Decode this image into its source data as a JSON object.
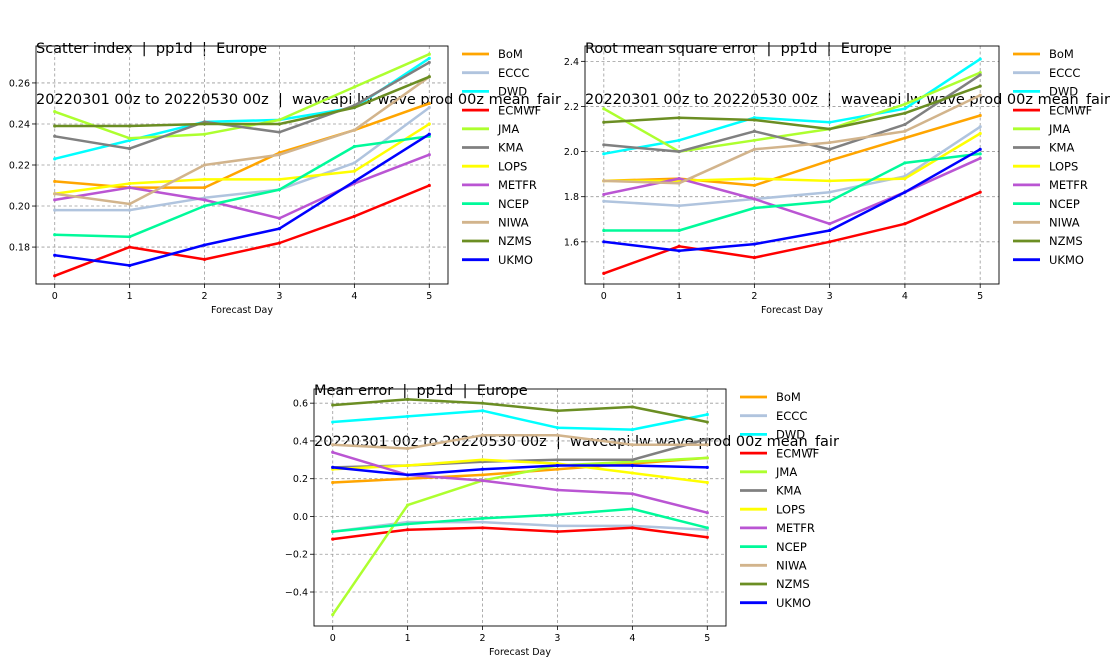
{
  "chart_data": [
    {
      "type": "line",
      "title": "Scatter index  |  pp1d  |  Europe",
      "subtitle": "20220301 00z to 20220530 00z  |  waveapi lw wave prod 00z mean_fair",
      "xlabel": "Forecast Day",
      "ylabel": "",
      "x": [
        0,
        1,
        2,
        3,
        4,
        5
      ],
      "xlim": [
        -0.25,
        5.25
      ],
      "ylim": [
        0.162,
        0.278
      ],
      "yticks": [
        0.18,
        0.2,
        0.22,
        0.24,
        0.26
      ],
      "ytick_labels": [
        "0.18",
        "0.20",
        "0.22",
        "0.24",
        "0.26"
      ],
      "grid": true,
      "legend_position": "outside-right",
      "series": [
        {
          "name": "BoM",
          "color": "#FFA500",
          "values": [
            0.212,
            0.209,
            0.209,
            0.226,
            0.237,
            0.25
          ]
        },
        {
          "name": "ECCC",
          "color": "#B0C4DE",
          "values": [
            0.198,
            0.198,
            0.204,
            0.208,
            0.221,
            0.248
          ]
        },
        {
          "name": "DWD",
          "color": "#00FFFF",
          "values": [
            0.223,
            0.232,
            0.241,
            0.242,
            0.248,
            0.272
          ]
        },
        {
          "name": "ECMWF",
          "color": "#FF0000",
          "values": [
            0.166,
            0.18,
            0.174,
            0.182,
            0.195,
            0.21
          ]
        },
        {
          "name": "JMA",
          "color": "#ADFF2F",
          "values": [
            0.246,
            0.233,
            0.235,
            0.242,
            0.258,
            0.274
          ]
        },
        {
          "name": "KMA",
          "color": "#808080",
          "values": [
            0.234,
            0.228,
            0.241,
            0.236,
            0.249,
            0.27
          ]
        },
        {
          "name": "LOPS",
          "color": "#FFFF00",
          "values": [
            0.206,
            0.211,
            0.213,
            0.213,
            0.217,
            0.24
          ]
        },
        {
          "name": "METFR",
          "color": "#BA55D3",
          "values": [
            0.203,
            0.209,
            0.203,
            0.194,
            0.211,
            0.225
          ]
        },
        {
          "name": "NCEP",
          "color": "#00FA9A",
          "values": [
            0.186,
            0.185,
            0.2,
            0.208,
            0.229,
            0.234
          ]
        },
        {
          "name": "NIWA",
          "color": "#D2B48C",
          "values": [
            0.206,
            0.201,
            0.22,
            0.225,
            0.237,
            0.263
          ]
        },
        {
          "name": "NZMS",
          "color": "#6B8E23",
          "values": [
            0.239,
            0.239,
            0.24,
            0.24,
            0.248,
            0.263
          ]
        },
        {
          "name": "UKMO",
          "color": "#0000FF",
          "values": [
            0.176,
            0.171,
            0.181,
            0.189,
            0.212,
            0.235
          ]
        }
      ]
    },
    {
      "type": "line",
      "title": "Root mean square error  |  pp1d  |  Europe",
      "subtitle": "20220301 00z to 20220530 00z  |  waveapi lw wave prod 00z mean_fair",
      "xlabel": "Forecast Day",
      "ylabel": "",
      "x": [
        0,
        1,
        2,
        3,
        4,
        5
      ],
      "xlim": [
        -0.25,
        5.25
      ],
      "ylim": [
        1.413,
        2.468
      ],
      "yticks": [
        1.6,
        1.8,
        2.0,
        2.2,
        2.4
      ],
      "ytick_labels": [
        "1.6",
        "1.8",
        "2.0",
        "2.2",
        "2.4"
      ],
      "grid": true,
      "legend_position": "outside-right",
      "series": [
        {
          "name": "BoM",
          "color": "#FFA500",
          "values": [
            1.87,
            1.88,
            1.85,
            1.96,
            2.06,
            2.16
          ]
        },
        {
          "name": "ECCC",
          "color": "#B0C4DE",
          "values": [
            1.78,
            1.76,
            1.79,
            1.82,
            1.89,
            2.11
          ]
        },
        {
          "name": "DWD",
          "color": "#00FFFF",
          "values": [
            1.99,
            2.05,
            2.15,
            2.13,
            2.19,
            2.41
          ]
        },
        {
          "name": "ECMWF",
          "color": "#FF0000",
          "values": [
            1.46,
            1.58,
            1.53,
            1.6,
            1.68,
            1.82
          ]
        },
        {
          "name": "JMA",
          "color": "#ADFF2F",
          "values": [
            2.19,
            2.0,
            2.05,
            2.1,
            2.21,
            2.35
          ]
        },
        {
          "name": "KMA",
          "color": "#808080",
          "values": [
            2.03,
            2.0,
            2.09,
            2.01,
            2.12,
            2.34
          ]
        },
        {
          "name": "LOPS",
          "color": "#FFFF00",
          "values": [
            1.87,
            1.87,
            1.88,
            1.87,
            1.88,
            2.08
          ]
        },
        {
          "name": "METFR",
          "color": "#BA55D3",
          "values": [
            1.81,
            1.88,
            1.79,
            1.68,
            1.82,
            1.97
          ]
        },
        {
          "name": "NCEP",
          "color": "#00FA9A",
          "values": [
            1.65,
            1.65,
            1.75,
            1.78,
            1.95,
            1.99
          ]
        },
        {
          "name": "NIWA",
          "color": "#D2B48C",
          "values": [
            1.87,
            1.86,
            2.01,
            2.04,
            2.09,
            2.25
          ]
        },
        {
          "name": "NZMS",
          "color": "#6B8E23",
          "values": [
            2.13,
            2.15,
            2.14,
            2.1,
            2.17,
            2.29
          ]
        },
        {
          "name": "UKMO",
          "color": "#0000FF",
          "values": [
            1.6,
            1.56,
            1.59,
            1.65,
            1.82,
            2.01
          ]
        }
      ]
    },
    {
      "type": "line",
      "title": "Mean error  |  pp1d  |  Europe",
      "subtitle": "20220301 00z to 20220530 00z  |  waveapi lw wave prod 00z mean_fair",
      "xlabel": "Forecast Day",
      "ylabel": "",
      "x": [
        0,
        1,
        2,
        3,
        4,
        5
      ],
      "xlim": [
        -0.25,
        5.25
      ],
      "ylim": [
        -0.58,
        0.675
      ],
      "yticks": [
        -0.4,
        -0.2,
        0.0,
        0.2,
        0.4,
        0.6
      ],
      "ytick_labels": [
        "−0.4",
        "−0.2",
        "0.0",
        "0.2",
        "0.4",
        "0.6"
      ],
      "grid": true,
      "legend_position": "outside-right",
      "series": [
        {
          "name": "BoM",
          "color": "#FFA500",
          "values": [
            0.18,
            0.2,
            0.22,
            0.25,
            0.28,
            0.31
          ]
        },
        {
          "name": "ECCC",
          "color": "#B0C4DE",
          "values": [
            -0.08,
            -0.03,
            -0.03,
            -0.05,
            -0.05,
            -0.07
          ]
        },
        {
          "name": "DWD",
          "color": "#00FFFF",
          "values": [
            0.5,
            0.53,
            0.56,
            0.47,
            0.46,
            0.54
          ]
        },
        {
          "name": "ECMWF",
          "color": "#FF0000",
          "values": [
            -0.12,
            -0.07,
            -0.06,
            -0.08,
            -0.06,
            -0.11
          ]
        },
        {
          "name": "JMA",
          "color": "#ADFF2F",
          "values": [
            -0.52,
            0.06,
            0.19,
            0.27,
            0.29,
            0.31
          ]
        },
        {
          "name": "KMA",
          "color": "#808080",
          "values": [
            0.26,
            0.27,
            0.29,
            0.3,
            0.3,
            0.41
          ]
        },
        {
          "name": "LOPS",
          "color": "#FFFF00",
          "values": [
            0.25,
            0.27,
            0.3,
            0.28,
            0.23,
            0.18
          ]
        },
        {
          "name": "METFR",
          "color": "#BA55D3",
          "values": [
            0.34,
            0.22,
            0.19,
            0.14,
            0.12,
            0.02
          ]
        },
        {
          "name": "NCEP",
          "color": "#00FA9A",
          "values": [
            -0.08,
            -0.04,
            -0.01,
            0.01,
            0.04,
            -0.06
          ]
        },
        {
          "name": "NIWA",
          "color": "#D2B48C",
          "values": [
            0.38,
            0.36,
            0.43,
            0.43,
            0.38,
            0.38
          ]
        },
        {
          "name": "NZMS",
          "color": "#6B8E23",
          "values": [
            0.59,
            0.62,
            0.6,
            0.56,
            0.58,
            0.5
          ]
        },
        {
          "name": "UKMO",
          "color": "#0000FF",
          "values": [
            0.26,
            0.22,
            0.25,
            0.27,
            0.27,
            0.26
          ]
        }
      ]
    }
  ]
}
